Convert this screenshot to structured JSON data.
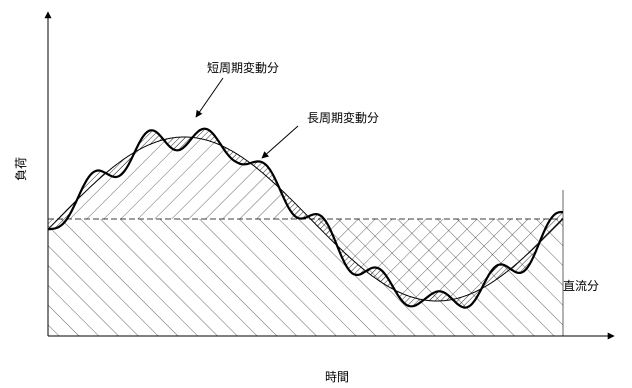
{
  "diagram": {
    "y_axis_label": "負荷",
    "x_axis_label": "時間",
    "labels": {
      "short_period": "短周期変動分",
      "long_period": "長周期変動分",
      "dc": "直流分"
    }
  }
}
